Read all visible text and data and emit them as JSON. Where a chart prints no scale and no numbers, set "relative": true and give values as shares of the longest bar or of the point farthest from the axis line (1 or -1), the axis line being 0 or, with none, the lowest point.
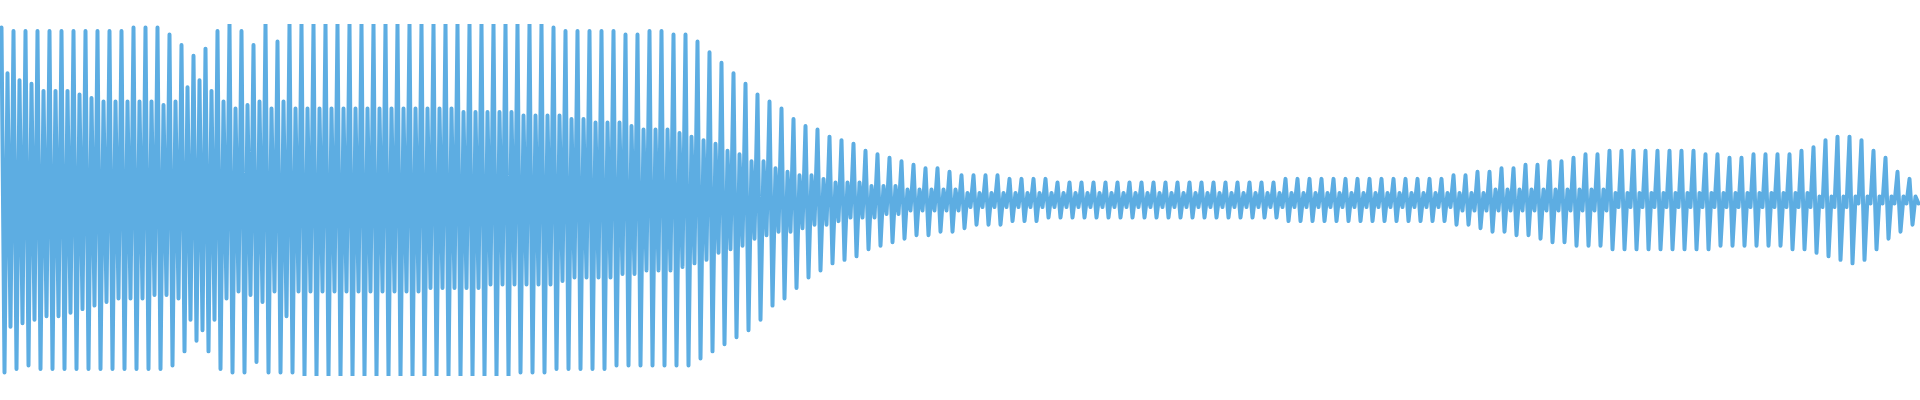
{
  "chart_data": {
    "type": "line",
    "relative": true,
    "categories": [
      null,
      null,
      null,
      null,
      null,
      null,
      null,
      null,
      null,
      null,
      null,
      null,
      null,
      null,
      null,
      null,
      null,
      null,
      null,
      null,
      null,
      null,
      null,
      null,
      null,
      null,
      null,
      null,
      null,
      null,
      null,
      null,
      null,
      null,
      null,
      null,
      null,
      null,
      null,
      null,
      null,
      null,
      null,
      null,
      null,
      null,
      null,
      null,
      null,
      null,
      null,
      null,
      null,
      null,
      null,
      null,
      null,
      null,
      null,
      null,
      null,
      null,
      null,
      null,
      null,
      null,
      null,
      null,
      null,
      null,
      null,
      null,
      null,
      null,
      null,
      null,
      null,
      null,
      null,
      null,
      null,
      null,
      null,
      null,
      null,
      null,
      null,
      null,
      null,
      null,
      null,
      null,
      null,
      null,
      null,
      null,
      null,
      null,
      null,
      null,
      null,
      null,
      null,
      null,
      null,
      null,
      null,
      null,
      null,
      null,
      null,
      null,
      null,
      null,
      null,
      null,
      null,
      null,
      null,
      null,
      null,
      null,
      null,
      null,
      null,
      null,
      null,
      null,
      null,
      null,
      null,
      null,
      null,
      null,
      null,
      null,
      null,
      null,
      null,
      null,
      null,
      null,
      null,
      null,
      null,
      null,
      null,
      null,
      null,
      null,
      null,
      null,
      null,
      null,
      null,
      null,
      null,
      null,
      null,
      null,
      null,
      null,
      null,
      null,
      null,
      null,
      null,
      null,
      null,
      null,
      null,
      null,
      null,
      null,
      null,
      null,
      null,
      null,
      null,
      null,
      null,
      null,
      null,
      null,
      null,
      null,
      null,
      null,
      null,
      null,
      null,
      null,
      null,
      null,
      null,
      null,
      null,
      null,
      null,
      null,
      null,
      null,
      null,
      null,
      null,
      null,
      null,
      null,
      null,
      null,
      null,
      null,
      null,
      null,
      null,
      null,
      null,
      null,
      null,
      null,
      null,
      null,
      null,
      null,
      null,
      null,
      null,
      null,
      null,
      null,
      null,
      null,
      null,
      null,
      null,
      null,
      null,
      null,
      null,
      null,
      null,
      null,
      null,
      null,
      null,
      null,
      null,
      null,
      null,
      null,
      null,
      null,
      null,
      null,
      null,
      null,
      null,
      null,
      null,
      null,
      null,
      null,
      null,
      null,
      null,
      null,
      null,
      null,
      null,
      null,
      null,
      null,
      null,
      null,
      null,
      null,
      null,
      null,
      null,
      null,
      null,
      null,
      null,
      null,
      null,
      null,
      null,
      null,
      null,
      null,
      null,
      null,
      null,
      null,
      null,
      null,
      null,
      null,
      null,
      null,
      null,
      null,
      null,
      null,
      null,
      null,
      null,
      null,
      null,
      null,
      null,
      null,
      null,
      null,
      null,
      null,
      null,
      null,
      null,
      null,
      null,
      null,
      null,
      null,
      null,
      null,
      null,
      null,
      null,
      null,
      null,
      null,
      null,
      null,
      null,
      null,
      null,
      null,
      null,
      null,
      null,
      null,
      null,
      null,
      null,
      null,
      null,
      null,
      null,
      null,
      null,
      null,
      null,
      null,
      null,
      null,
      null,
      null,
      null,
      null,
      null,
      null,
      null,
      null,
      null,
      null,
      null,
      null,
      null,
      null,
      null,
      null,
      null,
      null,
      null,
      null,
      null,
      null,
      null,
      null,
      null,
      null,
      null,
      null,
      null,
      null,
      null,
      null,
      null,
      null,
      null,
      null,
      null,
      null,
      null,
      null,
      null,
      null,
      null,
      null,
      null,
      null,
      null,
      null,
      null,
      null,
      null,
      null,
      null,
      null,
      null,
      null,
      null,
      null,
      null,
      null,
      null,
      null,
      null,
      null,
      null,
      null,
      null,
      null,
      null,
      null,
      null,
      null,
      null,
      null,
      null,
      null,
      null,
      null,
      null,
      null,
      null,
      null,
      null,
      null,
      null,
      null,
      null,
      null,
      null,
      null,
      null,
      null,
      null,
      null,
      null,
      null,
      null,
      null,
      null,
      null,
      null,
      null,
      null,
      null,
      null,
      null,
      null,
      null,
      null,
      null,
      null,
      null,
      null,
      null,
      null,
      null,
      null,
      null,
      null,
      null,
      null,
      null,
      null,
      null,
      null,
      null,
      null,
      null,
      null,
      null,
      null,
      null,
      null,
      null,
      null,
      null,
      null,
      null,
      null,
      null,
      null,
      null,
      null,
      null,
      null,
      null,
      null,
      null,
      null,
      null,
      null,
      null,
      null,
      null,
      null,
      null,
      null,
      null,
      null,
      null,
      null,
      null,
      null,
      null,
      null,
      null,
      null,
      null,
      null,
      null,
      null,
      null,
      null,
      null,
      null,
      null,
      null,
      null,
      null,
      null,
      null,
      null,
      null,
      null,
      null,
      null,
      null,
      null,
      null,
      null,
      null,
      null,
      null,
      null,
      null,
      null,
      null,
      null,
      null,
      null,
      null,
      null,
      null,
      null,
      null,
      null,
      null,
      null,
      null,
      null,
      null,
      null,
      null,
      null,
      null,
      null,
      null,
      null,
      null,
      null,
      null,
      null,
      null,
      null,
      null,
      null,
      null,
      null,
      null,
      null,
      null,
      null,
      null,
      null,
      null,
      null,
      null,
      null,
      null,
      null,
      null,
      null,
      null,
      null,
      null,
      null,
      null,
      null,
      null,
      null,
      null,
      null,
      null,
      null,
      null,
      null,
      null,
      null,
      null,
      null,
      null,
      null,
      null,
      null,
      null,
      null,
      null,
      null,
      null,
      null,
      null,
      null,
      null,
      null,
      null,
      null,
      null,
      null,
      null,
      null,
      null,
      null,
      null,
      null
    ],
    "series": [
      {
        "color": "#5dade2",
        "values": [
          0.99,
          0.01,
          0.86,
          0.14,
          0.98,
          0.02,
          0.84,
          0.15,
          0.98,
          0.03,
          0.83,
          0.16,
          0.98,
          0.02,
          0.81,
          0.17,
          0.98,
          0.02,
          0.81,
          0.17,
          0.98,
          0.02,
          0.81,
          0.18,
          0.98,
          0.02,
          0.8,
          0.19,
          0.98,
          0.02,
          0.79,
          0.2,
          0.98,
          0.02,
          0.78,
          0.21,
          0.98,
          0.02,
          0.78,
          0.22,
          0.98,
          0.02,
          0.78,
          0.22,
          0.99,
          0.02,
          0.78,
          0.22,
          0.99,
          0.02,
          0.78,
          0.23,
          0.99,
          0.02,
          0.77,
          0.23,
          0.97,
          0.03,
          0.78,
          0.22,
          0.94,
          0.07,
          0.82,
          0.16,
          0.91,
          0.1,
          0.84,
          0.13,
          0.93,
          0.07,
          0.81,
          0.16,
          0.98,
          0.02,
          0.78,
          0.22,
          1,
          0.01,
          0.76,
          0.24,
          0.98,
          0.01,
          0.77,
          0.23,
          0.94,
          0.04,
          0.78,
          0.21,
          1,
          0.01,
          0.76,
          0.24,
          0.95,
          0.01,
          0.78,
          0.17,
          1,
          0.01,
          0.76,
          0.24,
          1,
          0,
          0.76,
          0.24,
          1,
          0,
          0.76,
          0.24,
          1,
          0,
          0.76,
          0.24,
          1,
          0,
          0.76,
          0.24,
          1,
          0,
          0.76,
          0.24,
          1,
          0,
          0.76,
          0.24,
          1,
          0,
          0.76,
          0.24,
          1,
          0,
          0.76,
          0.24,
          1,
          0,
          0.76,
          0.24,
          1,
          0,
          0.76,
          0.24,
          1,
          0,
          0.76,
          0.25,
          1,
          0,
          0.76,
          0.25,
          1,
          0,
          0.76,
          0.25,
          1,
          0,
          0.75,
          0.25,
          1,
          0,
          0.75,
          0.25,
          1,
          0,
          0.75,
          0.26,
          1,
          0,
          0.75,
          0.26,
          1,
          0,
          0.75,
          0.26,
          1,
          0.01,
          0.74,
          0.26,
          1,
          0.01,
          0.74,
          0.26,
          1,
          0.01,
          0.74,
          0.26,
          0.99,
          0.02,
          0.74,
          0.27,
          0.98,
          0.02,
          0.73,
          0.28,
          0.98,
          0.02,
          0.73,
          0.28,
          0.98,
          0.02,
          0.72,
          0.28,
          0.98,
          0.02,
          0.72,
          0.28,
          0.98,
          0.03,
          0.72,
          0.29,
          0.97,
          0.03,
          0.71,
          0.29,
          0.97,
          0.03,
          0.7,
          0.3,
          0.98,
          0.03,
          0.7,
          0.3,
          0.98,
          0.03,
          0.7,
          0.3,
          0.97,
          0.03,
          0.69,
          0.31,
          0.97,
          0.03,
          0.68,
          0.32,
          0.95,
          0.05,
          0.67,
          0.33,
          0.92,
          0.07,
          0.66,
          0.35,
          0.89,
          0.09,
          0.64,
          0.36,
          0.86,
          0.11,
          0.63,
          0.37,
          0.83,
          0.13,
          0.61,
          0.39,
          0.8,
          0.16,
          0.61,
          0.4,
          0.78,
          0.2,
          0.59,
          0.41,
          0.76,
          0.22,
          0.58,
          0.41,
          0.73,
          0.25,
          0.57,
          0.42,
          0.71,
          0.28,
          0.57,
          0.43,
          0.7,
          0.3,
          0.56,
          0.43,
          0.68,
          0.32,
          0.55,
          0.44,
          0.67,
          0.33,
          0.55,
          0.45,
          0.66,
          0.34,
          0.55,
          0.45,
          0.64,
          0.36,
          0.54,
          0.45,
          0.63,
          0.37,
          0.54,
          0.46,
          0.62,
          0.38,
          0.54,
          0.46,
          0.61,
          0.39,
          0.53,
          0.47,
          0.6,
          0.4,
          0.53,
          0.47,
          0.59,
          0.4,
          0.53,
          0.47,
          0.59,
          0.41,
          0.53,
          0.47,
          0.58,
          0.41,
          0.53,
          0.47,
          0.57,
          0.42,
          0.52,
          0.48,
          0.57,
          0.43,
          0.52,
          0.48,
          0.57,
          0.43,
          0.52,
          0.48,
          0.57,
          0.43,
          0.52,
          0.48,
          0.56,
          0.44,
          0.52,
          0.48,
          0.56,
          0.44,
          0.52,
          0.48,
          0.56,
          0.44,
          0.52,
          0.48,
          0.56,
          0.45,
          0.52,
          0.48,
          0.55,
          0.45,
          0.52,
          0.48,
          0.55,
          0.45,
          0.52,
          0.48,
          0.55,
          0.45,
          0.52,
          0.48,
          0.55,
          0.45,
          0.52,
          0.48,
          0.55,
          0.45,
          0.52,
          0.48,
          0.55,
          0.45,
          0.52,
          0.48,
          0.55,
          0.45,
          0.52,
          0.48,
          0.55,
          0.45,
          0.52,
          0.48,
          0.55,
          0.45,
          0.52,
          0.48,
          0.55,
          0.45,
          0.52,
          0.48,
          0.55,
          0.45,
          0.52,
          0.48,
          0.55,
          0.45,
          0.52,
          0.48,
          0.55,
          0.45,
          0.52,
          0.48,
          0.55,
          0.45,
          0.52,
          0.48,
          0.55,
          0.45,
          0.52,
          0.48,
          0.55,
          0.45,
          0.52,
          0.48,
          0.55,
          0.45,
          0.52,
          0.48,
          0.55,
          0.45,
          0.52,
          0.48,
          0.55,
          0.45,
          0.52,
          0.48,
          0.56,
          0.44,
          0.52,
          0.48,
          0.56,
          0.44,
          0.52,
          0.48,
          0.56,
          0.44,
          0.52,
          0.48,
          0.56,
          0.44,
          0.52,
          0.48,
          0.56,
          0.44,
          0.52,
          0.48,
          0.56,
          0.44,
          0.52,
          0.48,
          0.56,
          0.44,
          0.52,
          0.48,
          0.56,
          0.44,
          0.52,
          0.48,
          0.56,
          0.44,
          0.52,
          0.48,
          0.56,
          0.44,
          0.52,
          0.48,
          0.56,
          0.44,
          0.52,
          0.48,
          0.56,
          0.44,
          0.52,
          0.48,
          0.56,
          0.44,
          0.52,
          0.48,
          0.56,
          0.44,
          0.52,
          0.48,
          0.57,
          0.43,
          0.52,
          0.47,
          0.57,
          0.43,
          0.52,
          0.47,
          0.58,
          0.42,
          0.52,
          0.47,
          0.58,
          0.41,
          0.53,
          0.47,
          0.59,
          0.41,
          0.53,
          0.47,
          0.59,
          0.4,
          0.53,
          0.47,
          0.6,
          0.4,
          0.53,
          0.47,
          0.6,
          0.39,
          0.53,
          0.47,
          0.61,
          0.38,
          0.53,
          0.47,
          0.61,
          0.38,
          0.53,
          0.47,
          0.62,
          0.37,
          0.53,
          0.47,
          0.63,
          0.37,
          0.53,
          0.47,
          0.63,
          0.37,
          0.53,
          0.47,
          0.64,
          0.36,
          0.52,
          0.48,
          0.64,
          0.36,
          0.52,
          0.48,
          0.64,
          0.36,
          0.52,
          0.48,
          0.64,
          0.36,
          0.52,
          0.48,
          0.64,
          0.36,
          0.52,
          0.48,
          0.64,
          0.36,
          0.52,
          0.48,
          0.64,
          0.36,
          0.52,
          0.48,
          0.64,
          0.36,
          0.52,
          0.48,
          0.63,
          0.36,
          0.52,
          0.48,
          0.63,
          0.37,
          0.52,
          0.48,
          0.62,
          0.37,
          0.52,
          0.48,
          0.62,
          0.37,
          0.52,
          0.48,
          0.63,
          0.37,
          0.52,
          0.48,
          0.63,
          0.37,
          0.52,
          0.48,
          0.63,
          0.37,
          0.52,
          0.48,
          0.63,
          0.36,
          0.52,
          0.48,
          0.64,
          0.36,
          0.52,
          0.48,
          0.65,
          0.35,
          0.51,
          0.48,
          0.67,
          0.34,
          0.51,
          0.48,
          0.68,
          0.33,
          0.51,
          0.48,
          0.68,
          0.32,
          0.51,
          0.49,
          0.67,
          0.33,
          0.51,
          0.49,
          0.64,
          0.36,
          0.51,
          0.49,
          0.62,
          0.39,
          0.51,
          0.49,
          0.58,
          0.41,
          0.51,
          0.49,
          0.56,
          0.43,
          0.51,
          0.49
        ]
      }
    ]
  }
}
